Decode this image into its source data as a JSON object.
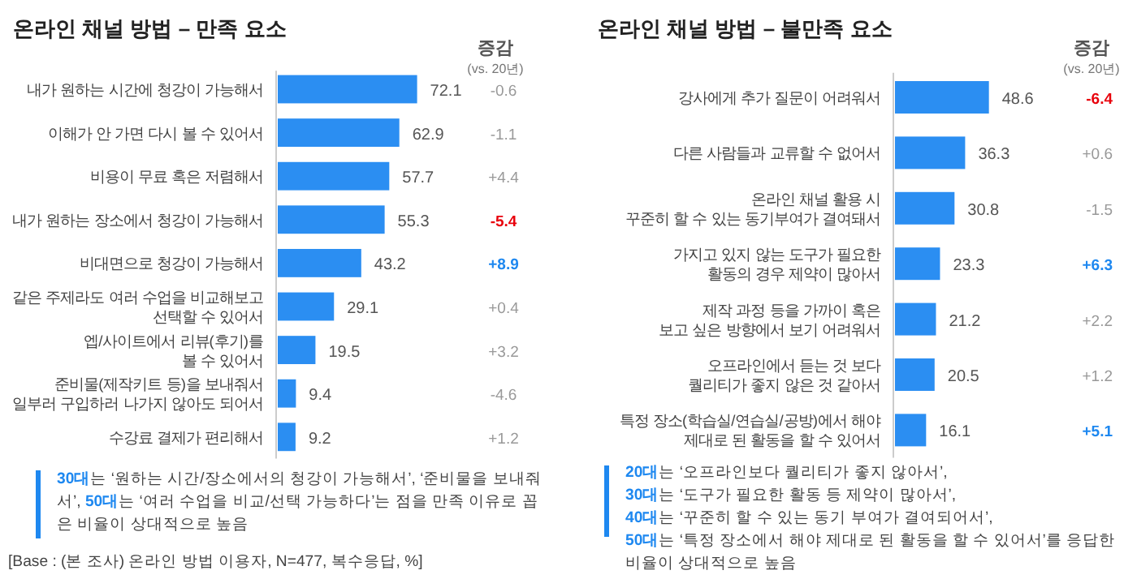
{
  "chart_data": [
    {
      "type": "bar",
      "orientation": "horizontal",
      "title": "온라인 채널 방법 – 만족 요소",
      "color": "#2b8ef2",
      "data_labels": true,
      "categories": [
        "내가 원하는 시간에 청강이 가능해서",
        "이해가 안 가면 다시 볼 수 있어서",
        "비용이 무료 혹은 저렴해서",
        "내가 원하는 장소에서 청강이 가능해서",
        "비대면으로 청강이 가능해서",
        "같은 주제라도 여러 수업을 비교해보고\n선택할 수 있어서",
        "엡/사이트에서 리뷰(후기)를\n볼 수 있어서",
        "준비물(제작키트 등)을 보내줘서\n일부러 구입하러 나가지 않아도 되어서",
        "수강료 결제가 편리해서"
      ],
      "values": [
        72.1,
        62.9,
        57.7,
        55.3,
        43.2,
        29.1,
        19.5,
        9.4,
        9.2
      ],
      "annotations": [
        "증감",
        "(vs. 20년)",
        "-0.6",
        "-1.1",
        "+4.4",
        "**-5.4**",
        "**+8.9**",
        "+0.4",
        "+3.2",
        "-4.6",
        "+1.2",
        "**30대**는 ‘원하는 시간/장소에서의 청강이 가능해서’, ‘준비물을 보내줘서’, **50대**는 ‘여러 수업을 비교/선택 가능하다’는 점을 만족 이유로 꼽은 비율이 상대적으로 높음",
        "[Base : (본 조사) 온라인 방법 이용자, N=477, 복수응답, %]"
      ]
    },
    {
      "type": "bar",
      "orientation": "horizontal",
      "title": "온라인 채널 방법 – 불만족 요소",
      "color": "#2b8ef2",
      "data_labels": true,
      "categories": [
        "강사에게 추가 질문이 어려워서",
        "다른 사람들과 교류할 수 없어서",
        "온라인 채널 활용 시\n꾸준히 할 수 있는 동기부여가 결여돼서",
        "가지고 있지 않는 도구가 필요한\n활동의 경우 제약이 많아서",
        "제작 과정 등을 가까이 혹은\n보고 싶은 방향에서 보기 어려워서",
        "오프라인에서 듣는 것 보다\n퀄리티가 좋지 않은 것 같아서",
        "특정 장소(학습실/연습실/공방)에서 해야\n제대로 된 활동을 할 수 있어서"
      ],
      "values": [
        48.6,
        36.3,
        30.8,
        23.3,
        21.2,
        20.5,
        16.1
      ],
      "annotations": [
        "증감",
        "(vs. 20년)",
        "**-6.4**",
        "+0.6",
        "-1.5",
        "**+6.3**",
        "+2.2",
        "+1.2",
        "**+5.1**",
        "**20대**는 ‘오프라인보다 퀄리티가 좋지 않아서’,\n**30대**는 ‘도구가 필요한 활동 등 제약이 많아서’,\n**40대**는 ‘꾸준히 할 수 있는 동기 부여가 결여되어서’,\n**50대**는 ‘특정 장소에서 해야 제대로 된 활동을 할 수 있어서’를 응답한 비율이 상대적으로 높음"
      ]
    }
  ]
}
